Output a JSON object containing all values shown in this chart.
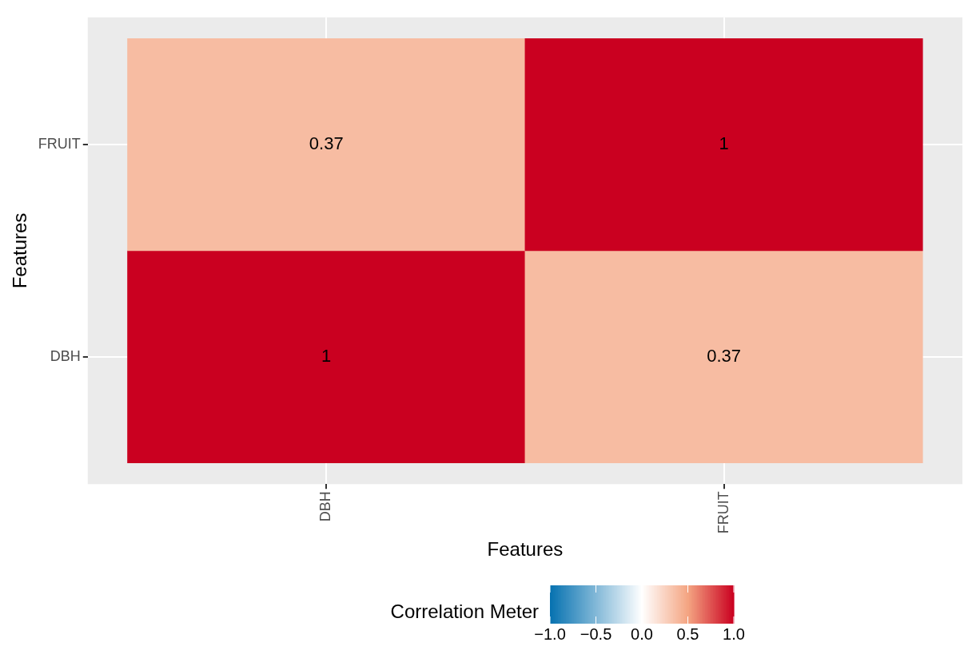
{
  "chart_data": {
    "type": "heatmap",
    "xlabel": "Features",
    "ylabel": "Features",
    "clabel": "Correlation Meter",
    "categories": [
      "DBH",
      "FRUIT"
    ],
    "y_categories": [
      "FRUIT",
      "DBH"
    ],
    "cells": [
      [
        0.37,
        1
      ],
      [
        1,
        0.37
      ]
    ],
    "clim": [
      -1,
      1
    ],
    "cticks": [
      {
        "value": -1,
        "label": "−1.0"
      },
      {
        "value": -0.5,
        "label": "−0.5"
      },
      {
        "value": 0,
        "label": "0.0"
      },
      {
        "value": 0.5,
        "label": "0.5"
      },
      {
        "value": 1,
        "label": "1.0"
      }
    ],
    "data_labels": true,
    "grid": true
  }
}
